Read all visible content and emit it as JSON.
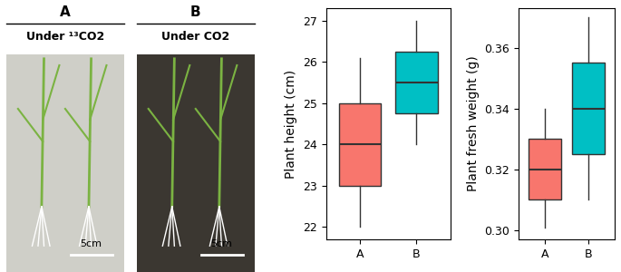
{
  "photos": [
    {
      "label": "A",
      "caption": "Under ¹³CO2",
      "scale_bar": "5cm"
    },
    {
      "label": "B",
      "caption": "Under CO2",
      "scale_bar": "5cm"
    }
  ],
  "chart_data": [
    {
      "type": "box",
      "y_label": "Plant height (cm)",
      "categories": [
        "A",
        "B"
      ],
      "colors": [
        "#F8766D",
        "#00BFC4"
      ],
      "boxes": [
        {
          "whislo": 22.0,
          "q1": 23.0,
          "med": 24.0,
          "q3": 25.0,
          "whishi": 26.1
        },
        {
          "whislo": 24.0,
          "q1": 24.75,
          "med": 25.5,
          "q3": 26.25,
          "whishi": 27.0
        }
      ],
      "ylim": [
        21.7,
        27.3
      ],
      "yticks": [
        22,
        23,
        24,
        25,
        26,
        27
      ]
    },
    {
      "type": "box",
      "y_label": "Plant fresh weight (g)",
      "categories": [
        "A",
        "B"
      ],
      "colors": [
        "#F8766D",
        "#00BFC4"
      ],
      "boxes": [
        {
          "whislo": 0.301,
          "q1": 0.31,
          "med": 0.32,
          "q3": 0.33,
          "whishi": 0.34
        },
        {
          "whislo": 0.31,
          "q1": 0.325,
          "med": 0.34,
          "q3": 0.355,
          "whishi": 0.37
        }
      ],
      "ylim": [
        0.297,
        0.373
      ],
      "yticks": [
        {
          "value": 0.3,
          "label": "0.30"
        },
        {
          "value": 0.32,
          "label": "0.32"
        },
        {
          "value": 0.34,
          "label": "0.34"
        },
        {
          "value": 0.36,
          "label": "0.36"
        }
      ]
    }
  ]
}
